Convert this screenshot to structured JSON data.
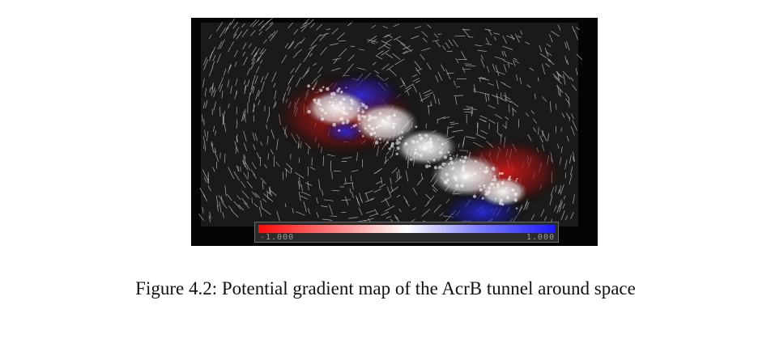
{
  "figure": {
    "colorbar": {
      "min_label": "-1.000",
      "max_label": "1.000",
      "colors": [
        "#ff0a0a",
        "#ffffff",
        "#1a1aff"
      ]
    }
  },
  "caption": "Figure 4.2: Potential gradient map of the AcrB tunnel around space"
}
